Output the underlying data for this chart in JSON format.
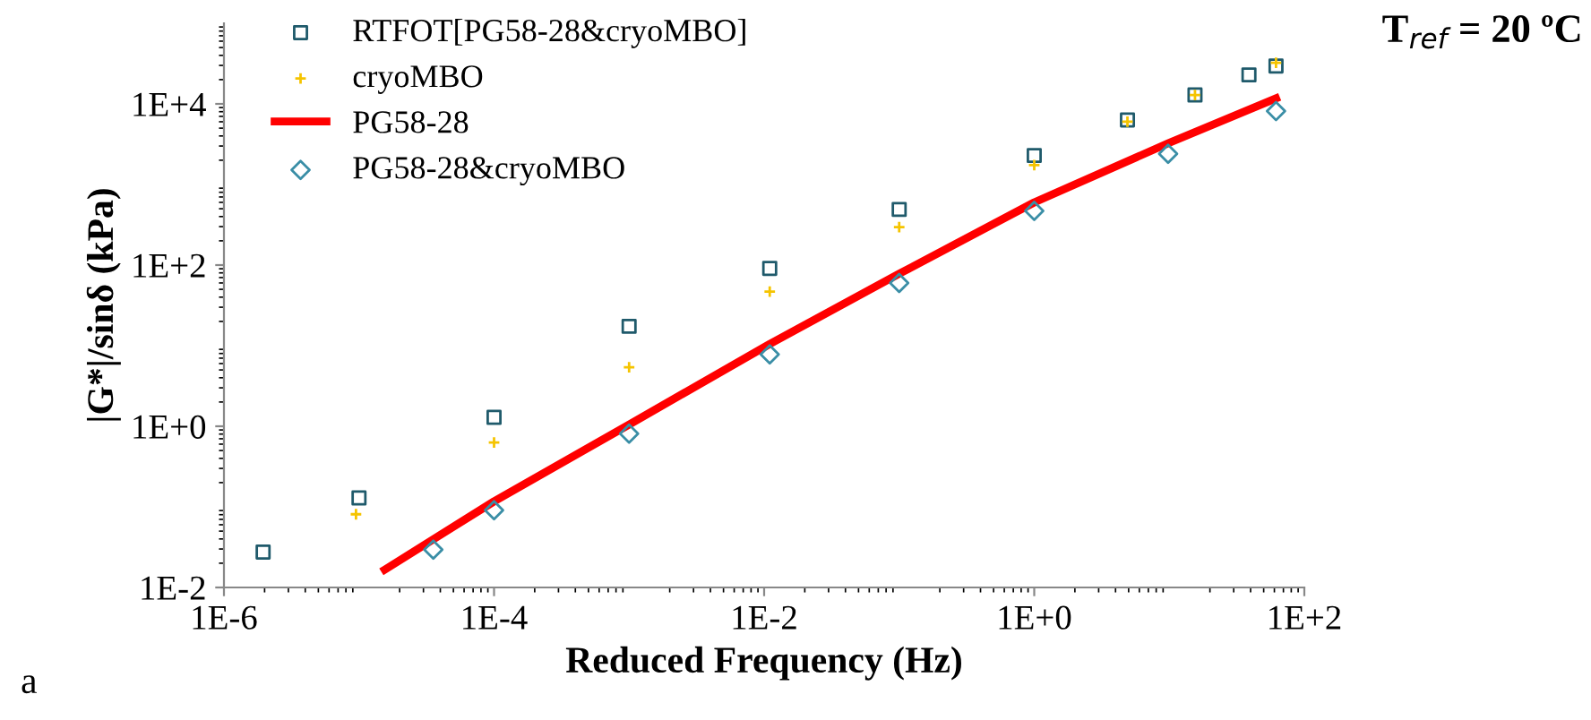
{
  "chart_data": {
    "type": "scatter",
    "xlabel": "Reduced Frequency (Hz)",
    "ylabel": "|G*|/sinδ (kPa)",
    "log": "xy",
    "grid": false,
    "legend": "top left",
    "xlim": [
      1e-06,
      100
    ],
    "ylim": [
      0.01,
      100000
    ],
    "xticks": [
      {
        "value": 1e-06,
        "label": "1E-6"
      },
      {
        "value": 0.0001,
        "label": "1E-4"
      },
      {
        "value": 0.01,
        "label": "1E-2"
      },
      {
        "value": 1,
        "label": "1E+0"
      },
      {
        "value": 100,
        "label": "1E+2"
      }
    ],
    "yticks": [
      {
        "value": 0.01,
        "label": "1E-2"
      },
      {
        "value": 1,
        "label": "1E+0"
      },
      {
        "value": 100,
        "label": "1E+2"
      },
      {
        "value": 10000,
        "label": "1E+4"
      }
    ],
    "annotations": [
      "T$_{ref}$ = 20 ºC",
      "a"
    ],
    "series": [
      {
        "name": "RTFOT[PG58-28&cryoMBO]",
        "marker": "square",
        "color": "#1f5a6b",
        "x": [
          1.95e-06,
          1e-05,
          0.0001,
          0.001,
          0.011,
          0.1,
          1,
          4.9,
          15.5,
          38.9,
          61.7
        ],
        "values": [
          0.0275,
          0.129,
          1.29,
          17.4,
          91,
          490,
          2290,
          6310,
          12900,
          22900,
          29500
        ]
      },
      {
        "name": "cryoMBO",
        "marker": "cross",
        "color": "#f5c400",
        "x": [
          9.5e-06,
          0.0001,
          0.001,
          0.011,
          0.1,
          1,
          4.9,
          15.5,
          61.7
        ],
        "values": [
          0.081,
          0.63,
          5.4,
          46.8,
          295,
          1740,
          6030,
          12900,
          32400
        ]
      },
      {
        "name": "PG58-28",
        "type": "line",
        "marker": "none",
        "color": "#ff0000",
        "x": [
          1.55e-05,
          0.0001,
          0.001,
          0.011,
          0.1,
          1,
          9.8,
          61.7
        ],
        "values": [
          0.0166,
          0.117,
          1.05,
          10.5,
          78,
          600,
          3240,
          11700
        ]
      },
      {
        "name": "PG58-28&cryoMBO",
        "marker": "diamond",
        "color": "#3a8ea6",
        "x": [
          3.55e-05,
          0.0001,
          0.001,
          0.011,
          0.1,
          1,
          9.8,
          61.7
        ],
        "values": [
          0.0295,
          0.091,
          0.81,
          7.8,
          60,
          470,
          2400,
          8130
        ]
      }
    ]
  }
}
